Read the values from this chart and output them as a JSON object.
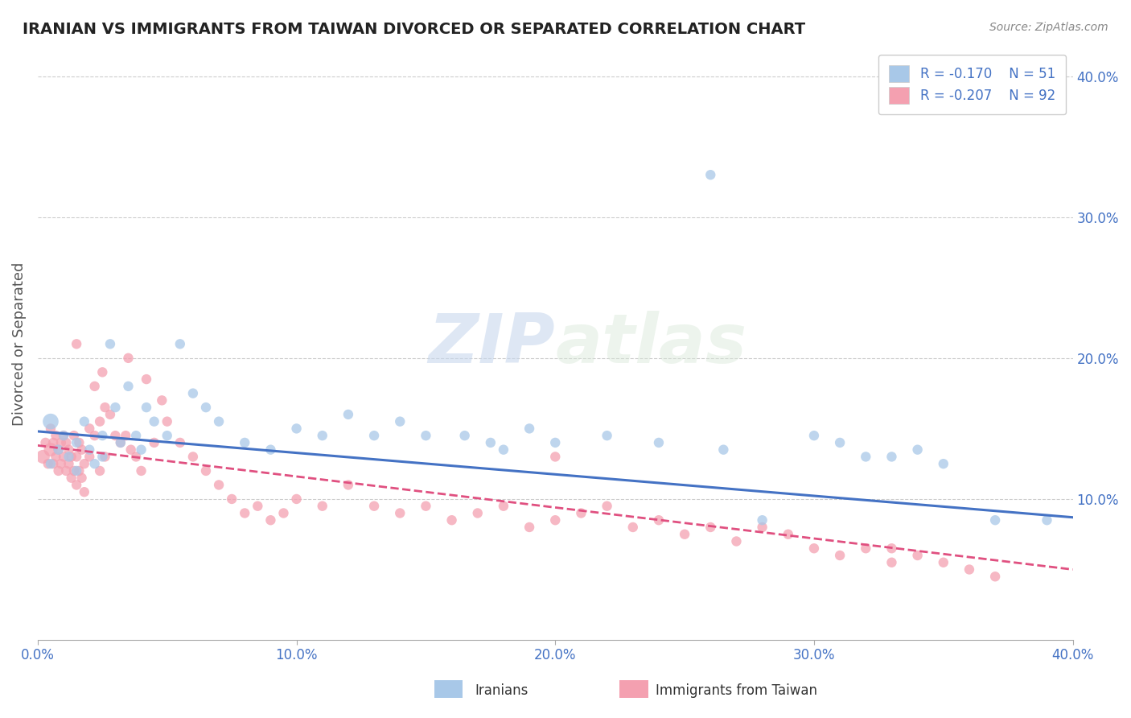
{
  "title": "IRANIAN VS IMMIGRANTS FROM TAIWAN DIVORCED OR SEPARATED CORRELATION CHART",
  "source": "Source: ZipAtlas.com",
  "xlabel_iranians": "Iranians",
  "xlabel_taiwan": "Immigrants from Taiwan",
  "ylabel": "Divorced or Separated",
  "watermark_zip": "ZIP",
  "watermark_atlas": "atlas",
  "legend_r1": "R = -0.170",
  "legend_n1": "N = 51",
  "legend_r2": "R = -0.207",
  "legend_n2": "N = 92",
  "blue_color": "#a8c8e8",
  "pink_color": "#f4a0b0",
  "blue_line_color": "#4472c4",
  "pink_line_color": "#e05080",
  "title_color": "#222222",
  "axis_label_color": "#4472c4",
  "xlim": [
    0.0,
    0.4
  ],
  "ylim": [
    0.0,
    0.42
  ],
  "blue_scatter_x": [
    0.005,
    0.005,
    0.008,
    0.01,
    0.012,
    0.015,
    0.015,
    0.018,
    0.02,
    0.022,
    0.025,
    0.025,
    0.028,
    0.03,
    0.032,
    0.035,
    0.038,
    0.04,
    0.042,
    0.045,
    0.05,
    0.055,
    0.06,
    0.065,
    0.07,
    0.08,
    0.09,
    0.1,
    0.11,
    0.12,
    0.13,
    0.14,
    0.15,
    0.165,
    0.175,
    0.19,
    0.2,
    0.22,
    0.24,
    0.265,
    0.28,
    0.3,
    0.32,
    0.34,
    0.37,
    0.39,
    0.35,
    0.26,
    0.31,
    0.18,
    0.33
  ],
  "blue_scatter_y": [
    0.155,
    0.125,
    0.135,
    0.145,
    0.13,
    0.14,
    0.12,
    0.155,
    0.135,
    0.125,
    0.145,
    0.13,
    0.21,
    0.165,
    0.14,
    0.18,
    0.145,
    0.135,
    0.165,
    0.155,
    0.145,
    0.21,
    0.175,
    0.165,
    0.155,
    0.14,
    0.135,
    0.15,
    0.145,
    0.16,
    0.145,
    0.155,
    0.145,
    0.145,
    0.14,
    0.15,
    0.14,
    0.145,
    0.14,
    0.135,
    0.085,
    0.145,
    0.13,
    0.135,
    0.085,
    0.085,
    0.125,
    0.33,
    0.14,
    0.135,
    0.13
  ],
  "blue_scatter_s": [
    200,
    80,
    80,
    80,
    80,
    80,
    80,
    80,
    80,
    80,
    80,
    80,
    80,
    80,
    80,
    80,
    80,
    80,
    80,
    80,
    80,
    80,
    80,
    80,
    80,
    80,
    80,
    80,
    80,
    80,
    80,
    80,
    80,
    80,
    80,
    80,
    80,
    80,
    80,
    80,
    80,
    80,
    80,
    80,
    80,
    80,
    80,
    80,
    80,
    80,
    80
  ],
  "pink_scatter_x": [
    0.002,
    0.003,
    0.004,
    0.005,
    0.005,
    0.006,
    0.006,
    0.007,
    0.007,
    0.008,
    0.008,
    0.009,
    0.009,
    0.01,
    0.01,
    0.011,
    0.011,
    0.012,
    0.012,
    0.013,
    0.013,
    0.014,
    0.014,
    0.015,
    0.015,
    0.016,
    0.016,
    0.017,
    0.017,
    0.018,
    0.018,
    0.02,
    0.02,
    0.022,
    0.022,
    0.024,
    0.024,
    0.026,
    0.026,
    0.028,
    0.03,
    0.032,
    0.034,
    0.036,
    0.038,
    0.04,
    0.042,
    0.045,
    0.048,
    0.05,
    0.055,
    0.06,
    0.065,
    0.07,
    0.075,
    0.08,
    0.085,
    0.09,
    0.095,
    0.1,
    0.11,
    0.12,
    0.13,
    0.14,
    0.15,
    0.16,
    0.17,
    0.18,
    0.19,
    0.2,
    0.21,
    0.22,
    0.23,
    0.24,
    0.25,
    0.26,
    0.27,
    0.28,
    0.29,
    0.3,
    0.31,
    0.32,
    0.33,
    0.34,
    0.35,
    0.36,
    0.37,
    0.035,
    0.025,
    0.015,
    0.33,
    0.2
  ],
  "pink_scatter_y": [
    0.13,
    0.14,
    0.125,
    0.135,
    0.15,
    0.125,
    0.14,
    0.13,
    0.145,
    0.12,
    0.135,
    0.125,
    0.14,
    0.13,
    0.145,
    0.12,
    0.14,
    0.125,
    0.135,
    0.115,
    0.13,
    0.12,
    0.145,
    0.11,
    0.13,
    0.12,
    0.14,
    0.115,
    0.135,
    0.105,
    0.125,
    0.13,
    0.15,
    0.145,
    0.18,
    0.155,
    0.12,
    0.165,
    0.13,
    0.16,
    0.145,
    0.14,
    0.145,
    0.135,
    0.13,
    0.12,
    0.185,
    0.14,
    0.17,
    0.155,
    0.14,
    0.13,
    0.12,
    0.11,
    0.1,
    0.09,
    0.095,
    0.085,
    0.09,
    0.1,
    0.095,
    0.11,
    0.095,
    0.09,
    0.095,
    0.085,
    0.09,
    0.095,
    0.08,
    0.085,
    0.09,
    0.095,
    0.08,
    0.085,
    0.075,
    0.08,
    0.07,
    0.08,
    0.075,
    0.065,
    0.06,
    0.065,
    0.055,
    0.06,
    0.055,
    0.05,
    0.045,
    0.2,
    0.19,
    0.21,
    0.065,
    0.13
  ],
  "pink_scatter_s": [
    150,
    80,
    80,
    150,
    80,
    80,
    80,
    80,
    80,
    80,
    80,
    80,
    80,
    80,
    80,
    80,
    80,
    80,
    80,
    80,
    80,
    80,
    80,
    80,
    80,
    80,
    80,
    80,
    80,
    80,
    80,
    80,
    80,
    80,
    80,
    80,
    80,
    80,
    80,
    80,
    80,
    80,
    80,
    80,
    80,
    80,
    80,
    80,
    80,
    80,
    80,
    80,
    80,
    80,
    80,
    80,
    80,
    80,
    80,
    80,
    80,
    80,
    80,
    80,
    80,
    80,
    80,
    80,
    80,
    80,
    80,
    80,
    80,
    80,
    80,
    80,
    80,
    80,
    80,
    80,
    80,
    80,
    80,
    80,
    80,
    80,
    80,
    80,
    80,
    80,
    80,
    80
  ],
  "xticks": [
    0.0,
    0.1,
    0.2,
    0.3,
    0.4
  ],
  "xtick_labels": [
    "0.0%",
    "10.0%",
    "20.0%",
    "30.0%",
    "40.0%"
  ],
  "yticks_right": [
    0.1,
    0.2,
    0.3,
    0.4
  ],
  "ytick_labels_right": [
    "10.0%",
    "20.0%",
    "30.0%",
    "40.0%"
  ],
  "blue_trend_x": [
    0.0,
    0.4
  ],
  "blue_trend_y_start": 0.148,
  "blue_trend_y_end": 0.087,
  "pink_trend_x": [
    0.0,
    0.4
  ],
  "pink_trend_y_start": 0.138,
  "pink_trend_y_end": 0.05
}
